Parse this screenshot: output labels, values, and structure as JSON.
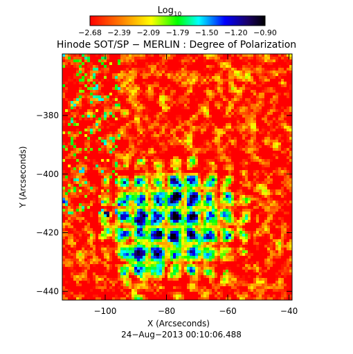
{
  "colorbar": {
    "label_main": "Log",
    "label_sub": "10",
    "tick_labels": [
      "−2.68",
      "−2.39",
      "−2.09",
      "−1.79",
      "−1.50",
      "−1.20",
      "−0.90"
    ],
    "range": [
      -2.68,
      -0.9
    ],
    "colors": [
      "#ff0000",
      "#ff7f00",
      "#ffff00",
      "#00ff00",
      "#00ffff",
      "#0000ff",
      "#1a0066",
      "#000000"
    ]
  },
  "chart_data": {
    "type": "heatmap",
    "title": "Hinode SOT/SP − MERLIN : Degree of Polarization",
    "xlabel": "X (Arcseconds)",
    "ylabel": "Y (Arcseconds)",
    "xlim": [
      -114,
      -39
    ],
    "ylim": [
      -443,
      -359
    ],
    "x_ticks": [
      -100,
      -80,
      -60,
      -40
    ],
    "x_tick_labels": [
      "−100",
      "−80",
      "−60",
      "−40"
    ],
    "y_ticks": [
      -440,
      -420,
      -400,
      -380
    ],
    "y_tick_labels": [
      "−440",
      "−420",
      "−400",
      "−380"
    ],
    "value_range": [
      -2.68,
      -0.9
    ],
    "grid": false,
    "description_regions": [
      {
        "center": [
          -78,
          -416
        ],
        "value": -1.1
      },
      {
        "center": [
          -88,
          -432
        ],
        "value": -0.95
      }
    ]
  },
  "footer": {
    "timestamp": "24−Aug−2013 00:10:06.488"
  }
}
